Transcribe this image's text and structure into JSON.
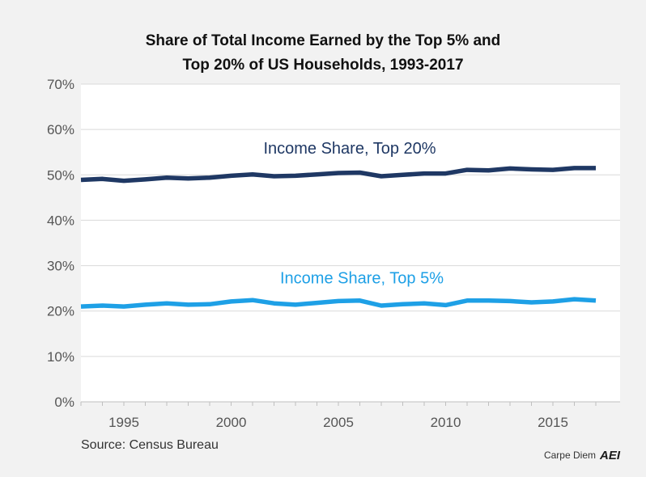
{
  "chart_data": {
    "type": "line",
    "title_lines": [
      "Share of Total Income Earned by the Top 5% and",
      "Top 20% of US Households, 1993-2017"
    ],
    "x": [
      1993,
      1994,
      1995,
      1996,
      1997,
      1998,
      1999,
      2000,
      2001,
      2002,
      2003,
      2004,
      2005,
      2006,
      2007,
      2008,
      2009,
      2010,
      2011,
      2012,
      2013,
      2014,
      2015,
      2016,
      2017
    ],
    "x_ticks": [
      1995,
      2000,
      2005,
      2010,
      2015
    ],
    "ylim": [
      0,
      70
    ],
    "y_ticks": [
      0,
      10,
      20,
      30,
      40,
      50,
      60,
      70
    ],
    "y_tick_labels": [
      "0%",
      "10%",
      "20%",
      "30%",
      "40%",
      "50%",
      "60%",
      "70%"
    ],
    "grid": "horizontal",
    "series": [
      {
        "name": "Income Share, Top 20%",
        "color": "#1f3864",
        "values": [
          48.9,
          49.1,
          48.7,
          49.0,
          49.4,
          49.2,
          49.4,
          49.8,
          50.1,
          49.7,
          49.8,
          50.1,
          50.4,
          50.5,
          49.7,
          50.0,
          50.3,
          50.3,
          51.1,
          51.0,
          51.4,
          51.2,
          51.1,
          51.5,
          51.5
        ]
      },
      {
        "name": "Income Share, Top 5%",
        "color": "#1ea0e6",
        "values": [
          21.0,
          21.2,
          21.0,
          21.4,
          21.7,
          21.4,
          21.5,
          22.1,
          22.4,
          21.7,
          21.4,
          21.8,
          22.2,
          22.3,
          21.2,
          21.5,
          21.7,
          21.3,
          22.3,
          22.3,
          22.2,
          21.9,
          22.1,
          22.6,
          22.3
        ]
      }
    ]
  },
  "source_text": "Source: Census Bureau",
  "credit": {
    "text": "Carpe Diem",
    "logo": "AEI"
  },
  "colors": {
    "background": "#f2f2f2",
    "plot_background": "#ffffff",
    "gridline": "#d9d9d9"
  }
}
